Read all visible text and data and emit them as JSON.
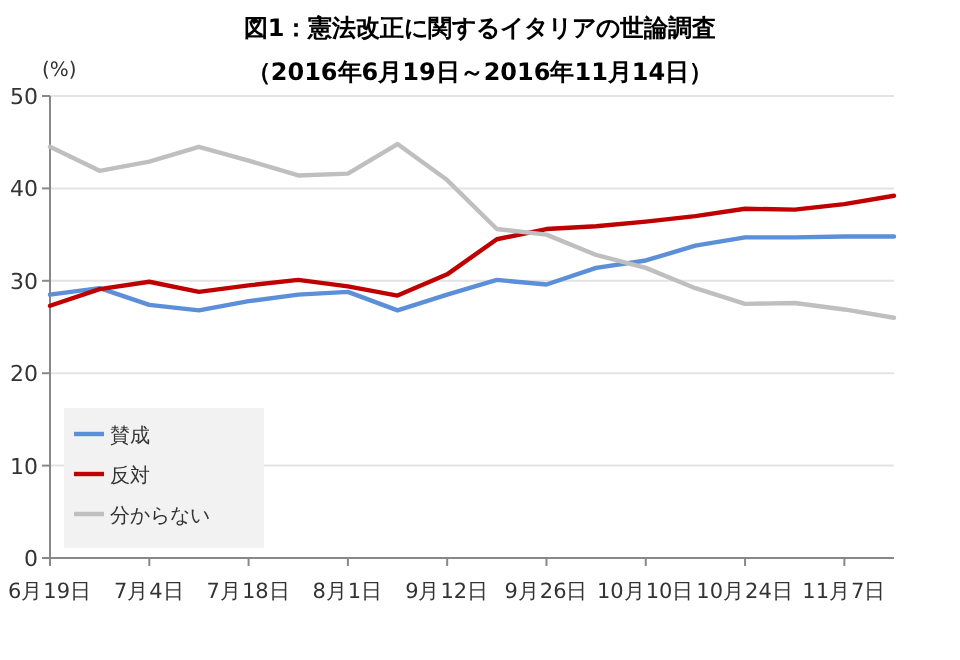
{
  "chart_data": {
    "type": "line",
    "title": "図1：憲法改正に関するイタリアの世論調査",
    "subtitle": "（2016年6月19日～2016年11月14日）",
    "ylabel": "(%)",
    "categories": [
      "6月19日",
      null,
      "7月4日",
      null,
      "7月18日",
      null,
      "8月1日",
      null,
      "9月12日",
      null,
      "9月26日",
      null,
      "10月10日",
      null,
      "10月24日",
      null,
      "11月7日",
      null
    ],
    "series": [
      {
        "name": "賛成",
        "color": "#5b8fd9",
        "values": [
          28.5,
          29.2,
          27.4,
          26.8,
          27.8,
          28.5,
          28.8,
          26.8,
          28.5,
          30.1,
          29.6,
          31.4,
          32.2,
          33.8,
          34.7,
          34.7,
          34.8,
          34.8
        ]
      },
      {
        "name": "反対",
        "color": "#c00000",
        "values": [
          27.3,
          29.1,
          29.9,
          28.8,
          29.5,
          30.1,
          29.4,
          28.4,
          30.7,
          34.5,
          35.6,
          35.9,
          36.4,
          37.0,
          37.8,
          37.7,
          38.3,
          39.2
        ]
      },
      {
        "name": "分からない",
        "color": "#bfbfbf",
        "values": [
          44.5,
          41.9,
          42.9,
          44.5,
          43.0,
          41.4,
          41.6,
          44.8,
          40.9,
          35.6,
          35.0,
          32.8,
          31.4,
          29.2,
          27.5,
          27.6,
          26.9,
          26.0
        ]
      }
    ],
    "ylim": [
      0,
      50
    ],
    "yticks": [
      0,
      10,
      20,
      30,
      40,
      50
    ],
    "grid": "y",
    "legend": "bottom left",
    "marker": "none",
    "line_style": "solid"
  }
}
